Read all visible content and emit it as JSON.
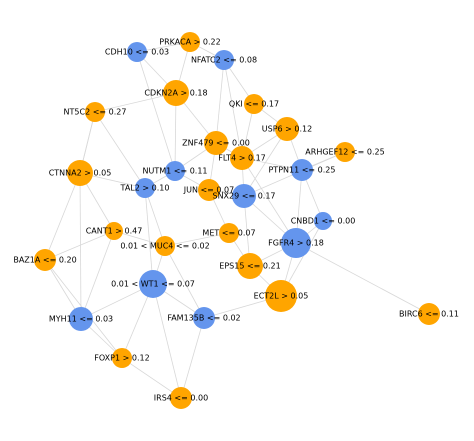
{
  "nodes": [
    {
      "label": "PRKACA > 0.22",
      "color": "#ffa500"
    },
    {
      "label": "CDH10 <= 0.03",
      "color": "#6495ed"
    },
    {
      "label": "NFATC2 <= 0.08",
      "color": "#6495ed"
    },
    {
      "label": "CDKN2A > 0.18",
      "color": "#ffa500"
    },
    {
      "label": "QKI <= 0.17",
      "color": "#ffa500"
    },
    {
      "label": "NT5C2 <= 0.27",
      "color": "#ffa500"
    },
    {
      "label": "USP6 > 0.12",
      "color": "#ffa500"
    },
    {
      "label": "ZNF479 <= 0.00",
      "color": "#ffa500"
    },
    {
      "label": "ARHGEF12 <= 0.25",
      "color": "#ffa500"
    },
    {
      "label": "FLT4 > 0.17",
      "color": "#ffa500"
    },
    {
      "label": "CTNNA2 > 0.05",
      "color": "#ffa500"
    },
    {
      "label": "NUTM1 <= 0.11",
      "color": "#6495ed"
    },
    {
      "label": "PTPN11 <= 0.25",
      "color": "#6495ed"
    },
    {
      "label": "TAL2 > 0.10",
      "color": "#6495ed"
    },
    {
      "label": "JUN <= 0.07",
      "color": "#ffa500"
    },
    {
      "label": "SNX29 <= 0.17",
      "color": "#6495ed"
    },
    {
      "label": "CNBD1 <= 0.00",
      "color": "#6495ed"
    },
    {
      "label": "CANT1 > 0.47",
      "color": "#ffa500"
    },
    {
      "label": "MET <= 0.07",
      "color": "#ffa500"
    },
    {
      "label": "FGFR4 > 0.18",
      "color": "#6495ed"
    },
    {
      "label": "0.01 < MUC4 <= 0.02",
      "color": "#ffa500"
    },
    {
      "label": "BAZ1A <= 0.20",
      "color": "#ffa500"
    },
    {
      "label": "EPS15 <= 0.21",
      "color": "#ffa500"
    },
    {
      "label": "0.01 < WT1 <= 0.07",
      "color": "#6495ed"
    },
    {
      "label": "ECT2L > 0.05",
      "color": "#ffa500"
    },
    {
      "label": "BIRC6 <= 0.11",
      "color": "#ffa500"
    },
    {
      "label": "MYH11 <= 0.03",
      "color": "#6495ed"
    },
    {
      "label": "FAM135B <= 0.02",
      "color": "#6495ed"
    },
    {
      "label": "FOXP1 > 0.12",
      "color": "#ffa500"
    },
    {
      "label": "IRS4 <= 0.00",
      "color": "#ffa500"
    }
  ]
}
